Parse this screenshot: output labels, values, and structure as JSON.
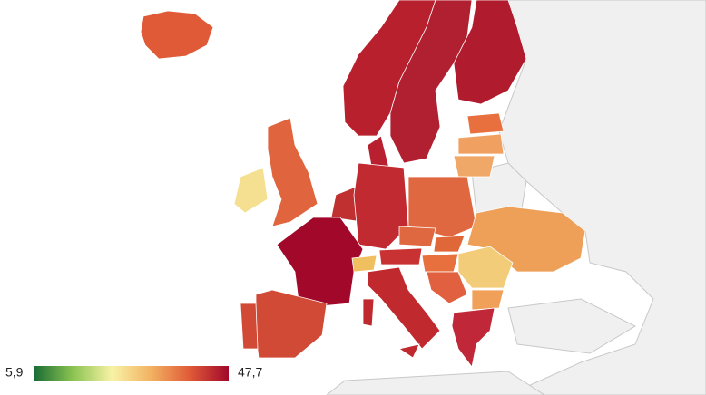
{
  "legend": {
    "min": "5,9",
    "max": "47,7",
    "colorscale": [
      "#1b6e35",
      "#8cc452",
      "#f8f2a6",
      "#f2b262",
      "#e05a38",
      "#a1082a"
    ]
  }
}
